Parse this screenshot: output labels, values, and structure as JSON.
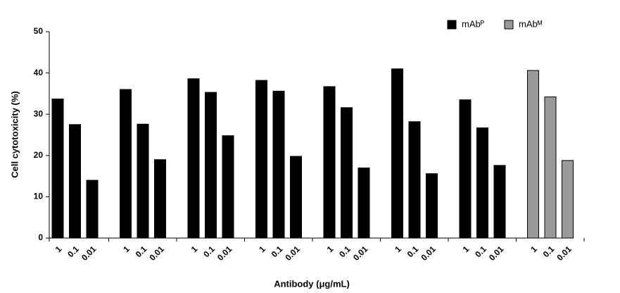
{
  "chart_data": {
    "type": "bar",
    "x_label": "Antibody (μg/mL)",
    "y_label": "Cell cytotoxicity (%)",
    "categories": [
      "1",
      "0.1",
      "0.01",
      "1",
      "0.1",
      "0.01",
      "1",
      "0.1",
      "0.01",
      "1",
      "0.1",
      "0.01",
      "1",
      "0.1",
      "0.01",
      "1",
      "0.1",
      "0.01",
      "1",
      "0.1",
      "0.01",
      "1",
      "0.1",
      "0.01"
    ],
    "series": [
      {
        "name": "mAbᴾ",
        "color": "#000000",
        "values": [
          33.7,
          27.5,
          14,
          36,
          27.6,
          19,
          38.6,
          35.3,
          24.8,
          38.2,
          35.6,
          19.8,
          36.7,
          31.6,
          17,
          41,
          28.2,
          15.6,
          33.5,
          26.7,
          17.6,
          null,
          null,
          null
        ]
      },
      {
        "name": "mAbᴹ",
        "color": "#9a9a9a",
        "values": [
          null,
          null,
          null,
          null,
          null,
          null,
          null,
          null,
          null,
          null,
          null,
          null,
          null,
          null,
          null,
          null,
          null,
          null,
          null,
          null,
          null,
          40.6,
          34.2,
          18.8
        ]
      }
    ],
    "ylim": [
      0,
      50
    ],
    "yticks": [
      0,
      10,
      20,
      30,
      40,
      50
    ],
    "grid": false,
    "legend": "top-right"
  }
}
